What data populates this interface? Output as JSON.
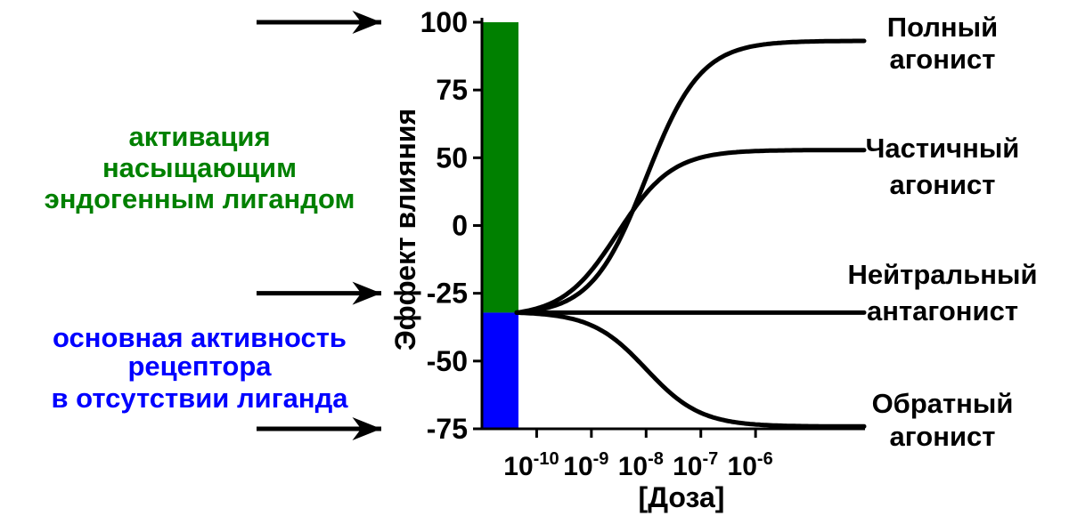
{
  "chart_data": {
    "type": "line",
    "xlabel": "[Доза]",
    "ylabel": "Эффект влияния",
    "x_scale": "log",
    "xlim": [
      "1e-11",
      "1e-4"
    ],
    "ylim": [
      -75,
      100
    ],
    "x_ticks": [
      {
        "value": "1e-10",
        "base": "10",
        "exp": "-10"
      },
      {
        "value": "1e-9",
        "base": "10",
        "exp": "-9"
      },
      {
        "value": "1e-8",
        "base": "10",
        "exp": "-8"
      },
      {
        "value": "1e-7",
        "base": "10",
        "exp": "-7"
      },
      {
        "value": "1e-6",
        "base": "10",
        "exp": "-6"
      }
    ],
    "y_ticks": [
      100,
      75,
      50,
      0,
      -25,
      -50,
      -75
    ],
    "bars": [
      {
        "from": -25,
        "to": 100,
        "color": "#008000"
      },
      {
        "from": -75,
        "to": -25,
        "color": "#0000ff"
      }
    ],
    "series": [
      {
        "label_lines": [
          "Полный",
          "агонист"
        ],
        "start": -25,
        "end": 92,
        "ec50": "1e-8"
      },
      {
        "label_lines": [
          "Частичный",
          "агонист"
        ],
        "start": -25,
        "end": 45,
        "ec50": "3e-9"
      },
      {
        "label_lines": [
          "Нейтральный",
          "антагонист"
        ],
        "start": -25,
        "end": -25,
        "ec50": "1e-8"
      },
      {
        "label_lines": [
          "Обратный",
          "агонист"
        ],
        "start": -25,
        "end": -74,
        "ec50": "1e-8"
      }
    ],
    "annotations": [
      {
        "lines": [
          "активация",
          "насыщающим",
          "эндогенным лигандом"
        ],
        "color": "#008000",
        "arrow_y": 100
      },
      {
        "lines": [
          "основная активность",
          "рецептора",
          "в отсутствии лиганда"
        ],
        "color": "#0000ff",
        "arrow_y": -75
      }
    ],
    "arrows_at_y": [
      100,
      -25,
      -75
    ]
  }
}
